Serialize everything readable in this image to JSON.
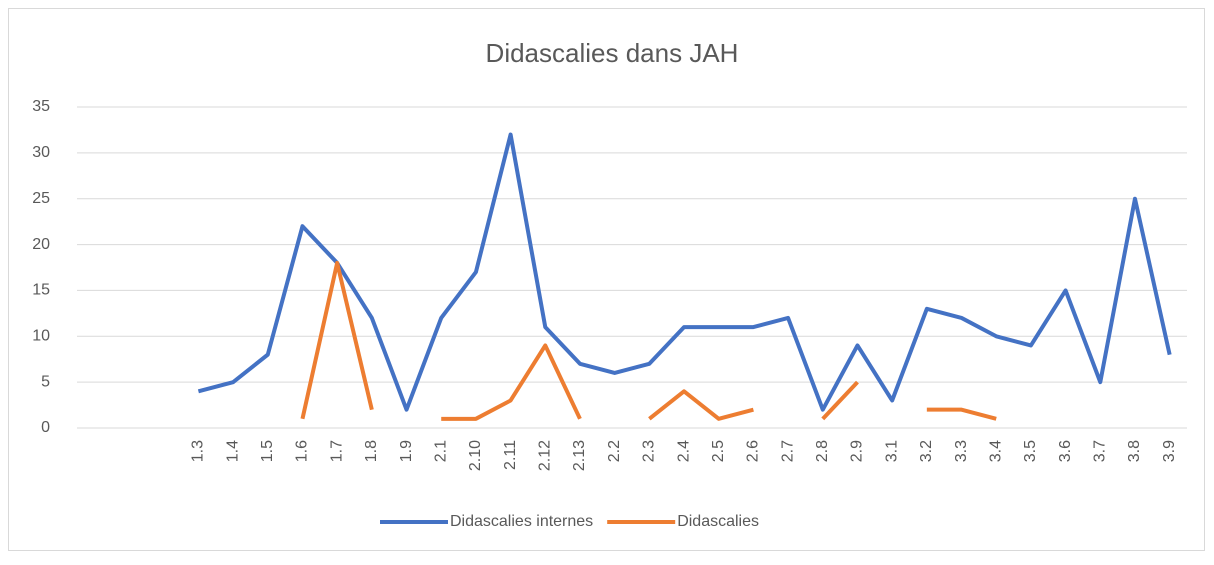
{
  "chart_data": {
    "type": "line",
    "title": "Didascalies dans JAH",
    "categories": [
      null,
      null,
      null,
      "1.3",
      "1.4",
      "1.5",
      "1.6",
      "1.7",
      "1.8",
      "1.9",
      "2.1",
      "2.10",
      "2.11",
      "2.12",
      "2.13",
      "2.2",
      "2.3",
      "2.4",
      "2.5",
      "2.6",
      "2.7",
      "2.8",
      "2.9",
      "3.1",
      "3.2",
      "3.3",
      "3.4",
      "3.5",
      "3.6",
      "3.7",
      "3.8",
      "3.9"
    ],
    "series": [
      {
        "name": "Didascalies internes",
        "color": "#4472c4",
        "values": [
          null,
          null,
          null,
          4,
          5,
          8,
          22,
          18,
          12,
          2,
          12,
          17,
          32,
          11,
          7,
          6,
          7,
          11,
          11,
          11,
          12,
          2,
          9,
          3,
          13,
          12,
          10,
          9,
          15,
          5,
          25,
          8
        ]
      },
      {
        "name": "Didascalies",
        "color": "#ed7d31",
        "values": [
          null,
          null,
          null,
          null,
          null,
          null,
          1,
          18,
          2,
          null,
          1,
          1,
          3,
          9,
          1,
          null,
          1,
          4,
          1,
          2,
          null,
          1,
          5,
          null,
          2,
          2,
          1,
          null,
          null,
          null,
          null,
          null
        ]
      }
    ],
    "ylim": [
      0,
      35
    ],
    "yticks": [
      0,
      5,
      10,
      15,
      20,
      25,
      30,
      35
    ],
    "grid": true,
    "legend": "bottom"
  }
}
